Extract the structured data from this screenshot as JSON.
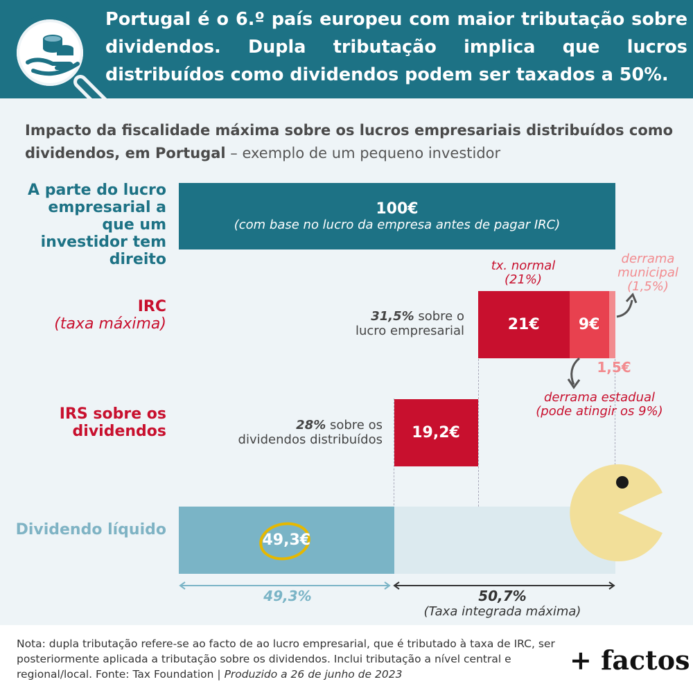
{
  "header": {
    "title": "Portugal é o 6.º país europeu com maior tributação sobre dividendos. Dupla tributação implica que lucros distribuídos como dividendos podem ser taxados a 50%."
  },
  "subtitle": {
    "bold": "Impacto da fiscalidade máxima sobre os lucros empresariais distribuídos como dividendos, em Portugal",
    "light": " – exemplo de um pequeno investidor"
  },
  "labels": {
    "investor": "A parte do lucro empresarial a que um investidor tem direito",
    "irc": "IRC",
    "irc_sub": "(taxa máxima)",
    "irs": "IRS sobre os dividendos",
    "net": "Dividendo líquido"
  },
  "notes": {
    "irc_pct": "31,5%",
    "irc_text": " sobre o",
    "irc_text2": "lucro empresarial",
    "irs_pct": "28%",
    "irs_text": " sobre os",
    "irs_text2": "dividendos distribuídos"
  },
  "annotations": {
    "tx_normal": "tx. normal",
    "tx_normal_pct": "(21%)",
    "derrama_municipal": "derrama",
    "derrama_municipal2": "municipal",
    "derrama_municipal_pct": "(1,5%)",
    "derrama_estadual": "derrama estadual",
    "derrama_estadual2": "(pode atingir os 9%)",
    "small_value": "1,5€"
  },
  "colors": {
    "teal": "#1d7285",
    "red": "#c8102e",
    "red_light": "#e8414f",
    "pink": "#f28b8f",
    "net": "#7ab4c6",
    "net_bg": "#dceaef",
    "pacman": "#f2df99",
    "circle": "#e6b800"
  },
  "chart_data": {
    "type": "bar",
    "unit": "€",
    "total": 100,
    "bars": [
      {
        "name": "investor",
        "value": 100,
        "label": "100€",
        "sublabel": "(com base no lucro da empresa antes de pagar IRC)"
      },
      {
        "name": "irc_normal",
        "value": 21,
        "label": "21€"
      },
      {
        "name": "derrama_estadual",
        "value": 9,
        "label": "9€"
      },
      {
        "name": "derrama_municipal",
        "value": 1.5,
        "label": "1,5€"
      },
      {
        "name": "irs",
        "value": 19.2,
        "label": "19,2€"
      },
      {
        "name": "net",
        "value": 49.3,
        "label": "49,3€"
      }
    ],
    "bottom": {
      "net_pct": "49,3%",
      "tax_pct": "50,7%",
      "tax_label": "(Taxa integrada máxima)"
    }
  },
  "footer": {
    "text": "Nota: dupla tributação refere-se ao facto de ao lucro empresarial, que é tributado à taxa de IRC, ser posteriormente aplicada a tributação sobre os dividendos. Inclui tributação a nível central e regional/local. Fonte: Tax Foundation | ",
    "produced": "Produzido a 26 de junho de 2023"
  },
  "brand": "+ factos"
}
